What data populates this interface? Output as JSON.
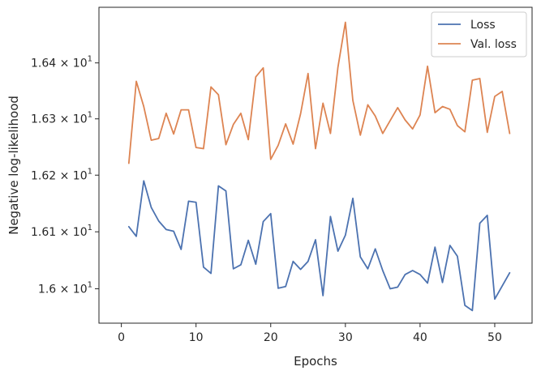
{
  "chart_data": {
    "type": "line",
    "xlabel": "Epochs",
    "ylabel": "Negative log-likelihood",
    "y_scale": "log",
    "xlim": [
      -3,
      55
    ],
    "ylim": [
      15.94,
      16.5
    ],
    "x_ticks": [
      0,
      10,
      20,
      30,
      40,
      50
    ],
    "x_tick_labels": [
      "0",
      "10",
      "20",
      "30",
      "40",
      "50"
    ],
    "y_ticks": [
      16.0,
      16.1,
      16.2,
      16.3,
      16.4
    ],
    "y_tick_mantissas": [
      "1.6",
      "1.61",
      "1.62",
      "1.63",
      "1.64"
    ],
    "y_tick_base": "10",
    "y_tick_exponent": "1",
    "legend_position": "top-right",
    "grid": false,
    "x": [
      1,
      2,
      3,
      4,
      5,
      6,
      7,
      8,
      9,
      10,
      11,
      12,
      13,
      14,
      15,
      16,
      17,
      18,
      19,
      20,
      21,
      22,
      23,
      24,
      25,
      26,
      27,
      28,
      29,
      30,
      31,
      32,
      33,
      34,
      35,
      36,
      37,
      38,
      39,
      40,
      41,
      42,
      43,
      44,
      45,
      46,
      47,
      48,
      49,
      50,
      51,
      52
    ],
    "series": [
      {
        "name": "Loss",
        "color": "#4c72b0",
        "values": [
          16.109,
          16.092,
          16.19,
          16.143,
          16.119,
          16.104,
          16.101,
          16.069,
          16.154,
          16.152,
          16.038,
          16.027,
          16.181,
          16.172,
          16.035,
          16.042,
          16.085,
          16.043,
          16.118,
          16.132,
          16.001,
          16.004,
          16.048,
          16.034,
          16.048,
          16.086,
          15.988,
          16.127,
          16.066,
          16.094,
          16.159,
          16.056,
          16.035,
          16.07,
          16.032,
          16.0,
          16.003,
          16.025,
          16.032,
          16.025,
          16.01,
          16.073,
          16.011,
          16.076,
          16.057,
          15.971,
          15.962,
          16.115,
          16.129,
          15.982,
          16.005,
          16.028
        ]
      },
      {
        "name": "Val. loss",
        "color": "#dd8452",
        "values": [
          16.221,
          16.367,
          16.322,
          16.262,
          16.265,
          16.31,
          16.273,
          16.316,
          16.316,
          16.249,
          16.247,
          16.357,
          16.343,
          16.254,
          16.29,
          16.31,
          16.263,
          16.375,
          16.391,
          16.228,
          16.253,
          16.291,
          16.255,
          16.309,
          16.381,
          16.247,
          16.328,
          16.274,
          16.392,
          16.473,
          16.333,
          16.271,
          16.325,
          16.305,
          16.274,
          16.297,
          16.32,
          16.298,
          16.282,
          16.307,
          16.394,
          16.311,
          16.322,
          16.317,
          16.288,
          16.277,
          16.369,
          16.372,
          16.276,
          16.34,
          16.349,
          16.274
        ]
      }
    ]
  }
}
